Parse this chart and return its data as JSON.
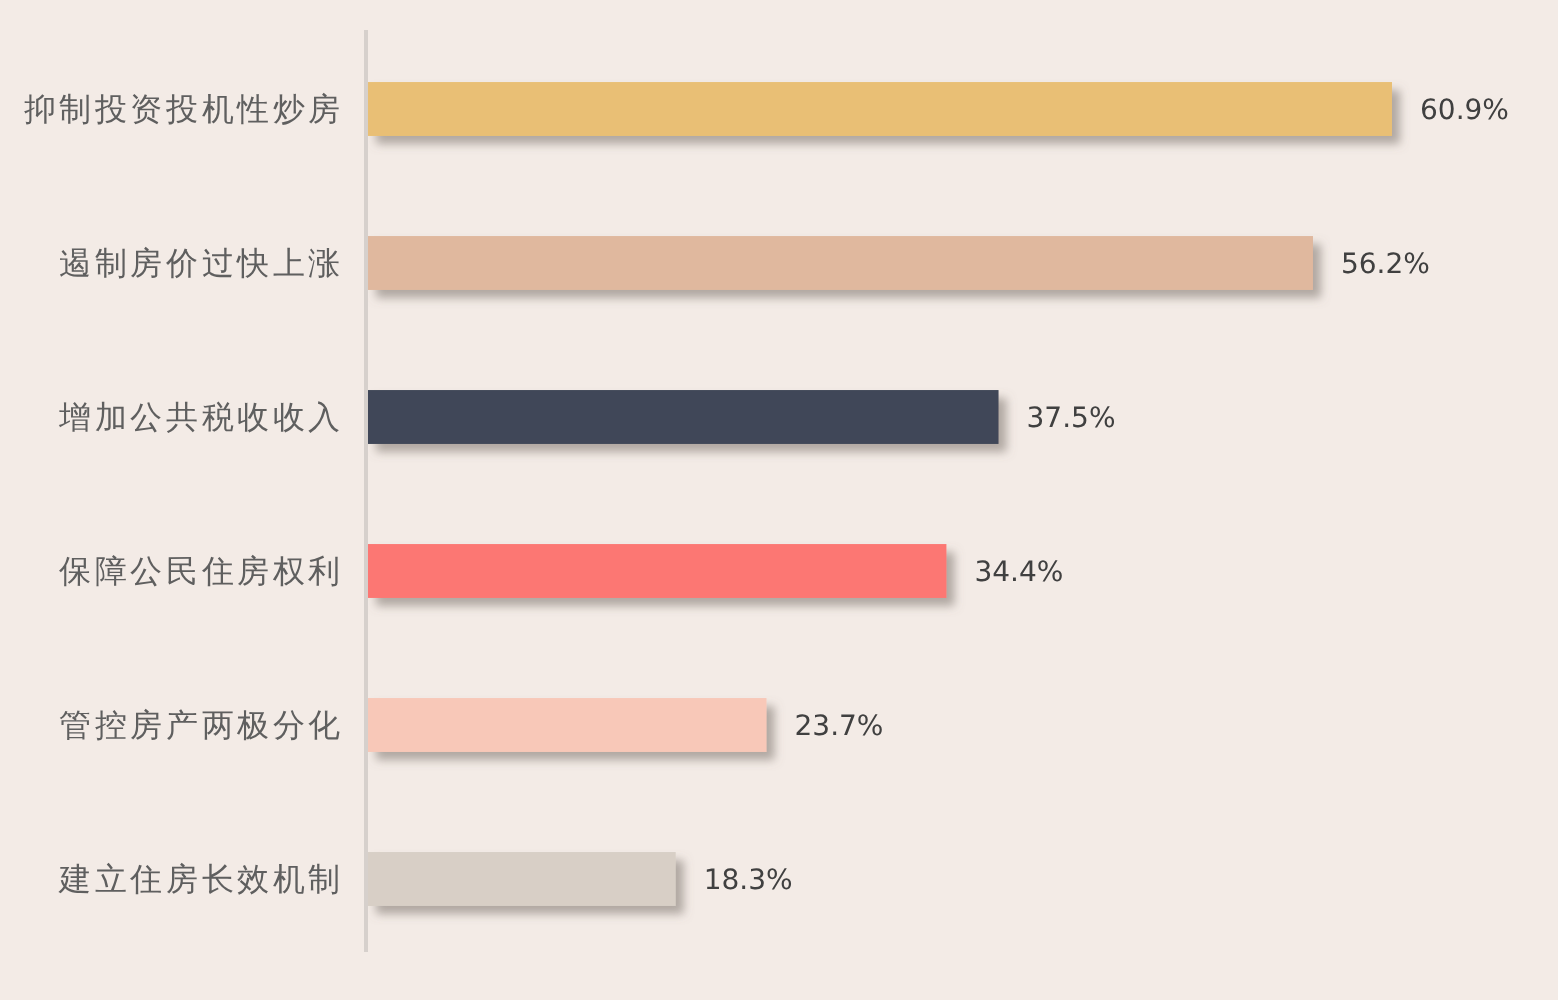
{
  "chart_data": {
    "type": "bar",
    "orientation": "horizontal",
    "categories": [
      "抑制投资投机性炒房",
      "遏制房价过快上涨",
      "增加公共税收收入",
      "保障公民住房权利",
      "管控房产两极分化",
      "建立住房长效机制"
    ],
    "values": [
      60.9,
      56.2,
      37.5,
      34.4,
      23.7,
      18.3
    ],
    "colors": [
      "#e9bf74",
      "#e0b89e",
      "#3f4758",
      "#fc7773",
      "#f8c8b8",
      "#d8cfc6"
    ],
    "value_labels": [
      "60.9%",
      "56.2%",
      "37.5%",
      "34.4%",
      "23.7%",
      "18.3%"
    ],
    "tick_labels": "y"
  }
}
